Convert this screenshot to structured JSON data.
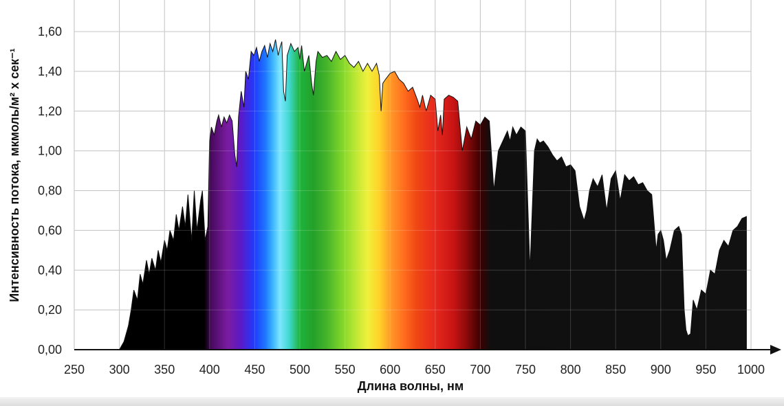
{
  "chart_data": {
    "type": "area",
    "title": "",
    "xlabel": "Длина волны, нм",
    "ylabel": "Интенсивность потока, мкмоль/м² х сек⁻¹",
    "xlim": [
      250,
      1000
    ],
    "ylim": [
      0,
      1.6
    ],
    "x_ticks": [
      250,
      300,
      350,
      400,
      450,
      500,
      550,
      600,
      650,
      700,
      750,
      800,
      850,
      900,
      950,
      1000
    ],
    "x_tick_labels": [
      "250",
      "300",
      "350",
      "400",
      "450",
      "500",
      "550",
      "600",
      "650",
      "700",
      "750",
      "800",
      "850",
      "900",
      "950",
      "1000"
    ],
    "y_ticks": [
      0,
      0.2,
      0.4,
      0.6,
      0.8,
      1.0,
      1.2,
      1.4,
      1.6
    ],
    "y_tick_labels": [
      "0,00",
      "0,20",
      "0,40",
      "0,60",
      "0,80",
      "1,00",
      "1,20",
      "1,40",
      "1,60"
    ],
    "grid": true,
    "fill_gradient": "visible spectrum 400–710 nm, black outside",
    "series": [
      {
        "x": [
          295,
          300,
          305,
          310,
          313,
          316,
          320,
          323,
          326,
          330,
          333,
          336,
          340,
          343,
          346,
          350,
          353,
          356,
          360,
          363,
          366,
          370,
          373,
          376,
          380,
          383,
          386,
          390,
          392,
          395,
          398,
          400,
          402,
          405,
          408,
          410,
          413,
          416,
          419,
          422,
          425,
          428,
          430,
          432,
          435,
          438,
          440,
          443,
          446,
          449,
          452,
          455,
          458,
          461,
          464,
          467,
          470,
          473,
          476,
          478,
          480,
          482,
          484,
          486,
          490,
          494,
          498,
          500,
          502,
          505,
          510,
          513,
          515,
          518,
          520,
          525,
          530,
          535,
          540,
          545,
          550,
          555,
          560,
          565,
          570,
          575,
          580,
          585,
          588,
          590,
          592,
          595,
          600,
          605,
          610,
          615,
          620,
          625,
          630,
          633,
          636,
          640,
          645,
          650,
          653,
          656,
          658,
          660,
          665,
          670,
          675,
          680,
          685,
          690,
          695,
          700,
          705,
          710,
          715,
          720,
          725,
          730,
          733,
          736,
          740,
          745,
          750,
          755,
          760,
          763,
          766,
          770,
          775,
          780,
          785,
          790,
          795,
          800,
          805,
          810,
          815,
          818,
          821,
          825,
          830,
          835,
          840,
          845,
          850,
          855,
          860,
          865,
          870,
          875,
          880,
          885,
          890,
          895,
          897,
          900,
          903,
          906,
          910,
          915,
          920,
          923,
          926,
          928,
          930,
          933,
          936,
          940,
          945,
          950,
          955,
          960,
          965,
          970,
          975,
          980,
          985,
          990,
          995
        ],
        "y": [
          0.0,
          0.0,
          0.04,
          0.12,
          0.2,
          0.3,
          0.25,
          0.38,
          0.33,
          0.45,
          0.38,
          0.46,
          0.4,
          0.5,
          0.44,
          0.55,
          0.5,
          0.6,
          0.55,
          0.68,
          0.6,
          0.72,
          0.62,
          0.78,
          0.55,
          0.8,
          0.6,
          0.75,
          0.8,
          0.55,
          0.62,
          1.05,
          1.12,
          1.08,
          1.15,
          1.18,
          1.12,
          1.17,
          1.14,
          1.18,
          1.15,
          0.98,
          0.92,
          1.17,
          1.3,
          1.22,
          1.4,
          1.36,
          1.5,
          1.48,
          1.52,
          1.45,
          1.5,
          1.53,
          1.47,
          1.54,
          1.5,
          1.56,
          1.48,
          1.52,
          1.55,
          1.3,
          1.25,
          1.48,
          1.54,
          1.5,
          1.52,
          1.46,
          1.53,
          1.4,
          1.48,
          1.34,
          1.28,
          1.45,
          1.5,
          1.47,
          1.48,
          1.45,
          1.5,
          1.46,
          1.48,
          1.44,
          1.42,
          1.45,
          1.4,
          1.44,
          1.4,
          1.44,
          1.38,
          1.2,
          1.34,
          1.36,
          1.39,
          1.4,
          1.36,
          1.34,
          1.3,
          1.32,
          1.26,
          1.22,
          1.28,
          1.2,
          1.28,
          1.26,
          1.1,
          1.18,
          1.08,
          1.26,
          1.28,
          1.27,
          1.25,
          1.0,
          1.12,
          1.06,
          1.15,
          1.13,
          1.17,
          1.15,
          0.8,
          1.0,
          1.05,
          1.1,
          1.05,
          1.12,
          1.08,
          1.12,
          1.1,
          0.4,
          1.0,
          1.06,
          1.04,
          1.05,
          1.02,
          0.98,
          0.95,
          0.97,
          0.92,
          0.93,
          0.9,
          0.72,
          0.65,
          0.7,
          0.8,
          0.86,
          0.82,
          0.88,
          0.7,
          0.86,
          0.9,
          0.75,
          0.88,
          0.85,
          0.87,
          0.83,
          0.84,
          0.8,
          0.78,
          0.5,
          0.58,
          0.6,
          0.55,
          0.45,
          0.5,
          0.6,
          0.62,
          0.58,
          0.2,
          0.1,
          0.07,
          0.08,
          0.25,
          0.2,
          0.3,
          0.28,
          0.4,
          0.38,
          0.5,
          0.55,
          0.52,
          0.6,
          0.62,
          0.66,
          0.67
        ]
      }
    ]
  }
}
